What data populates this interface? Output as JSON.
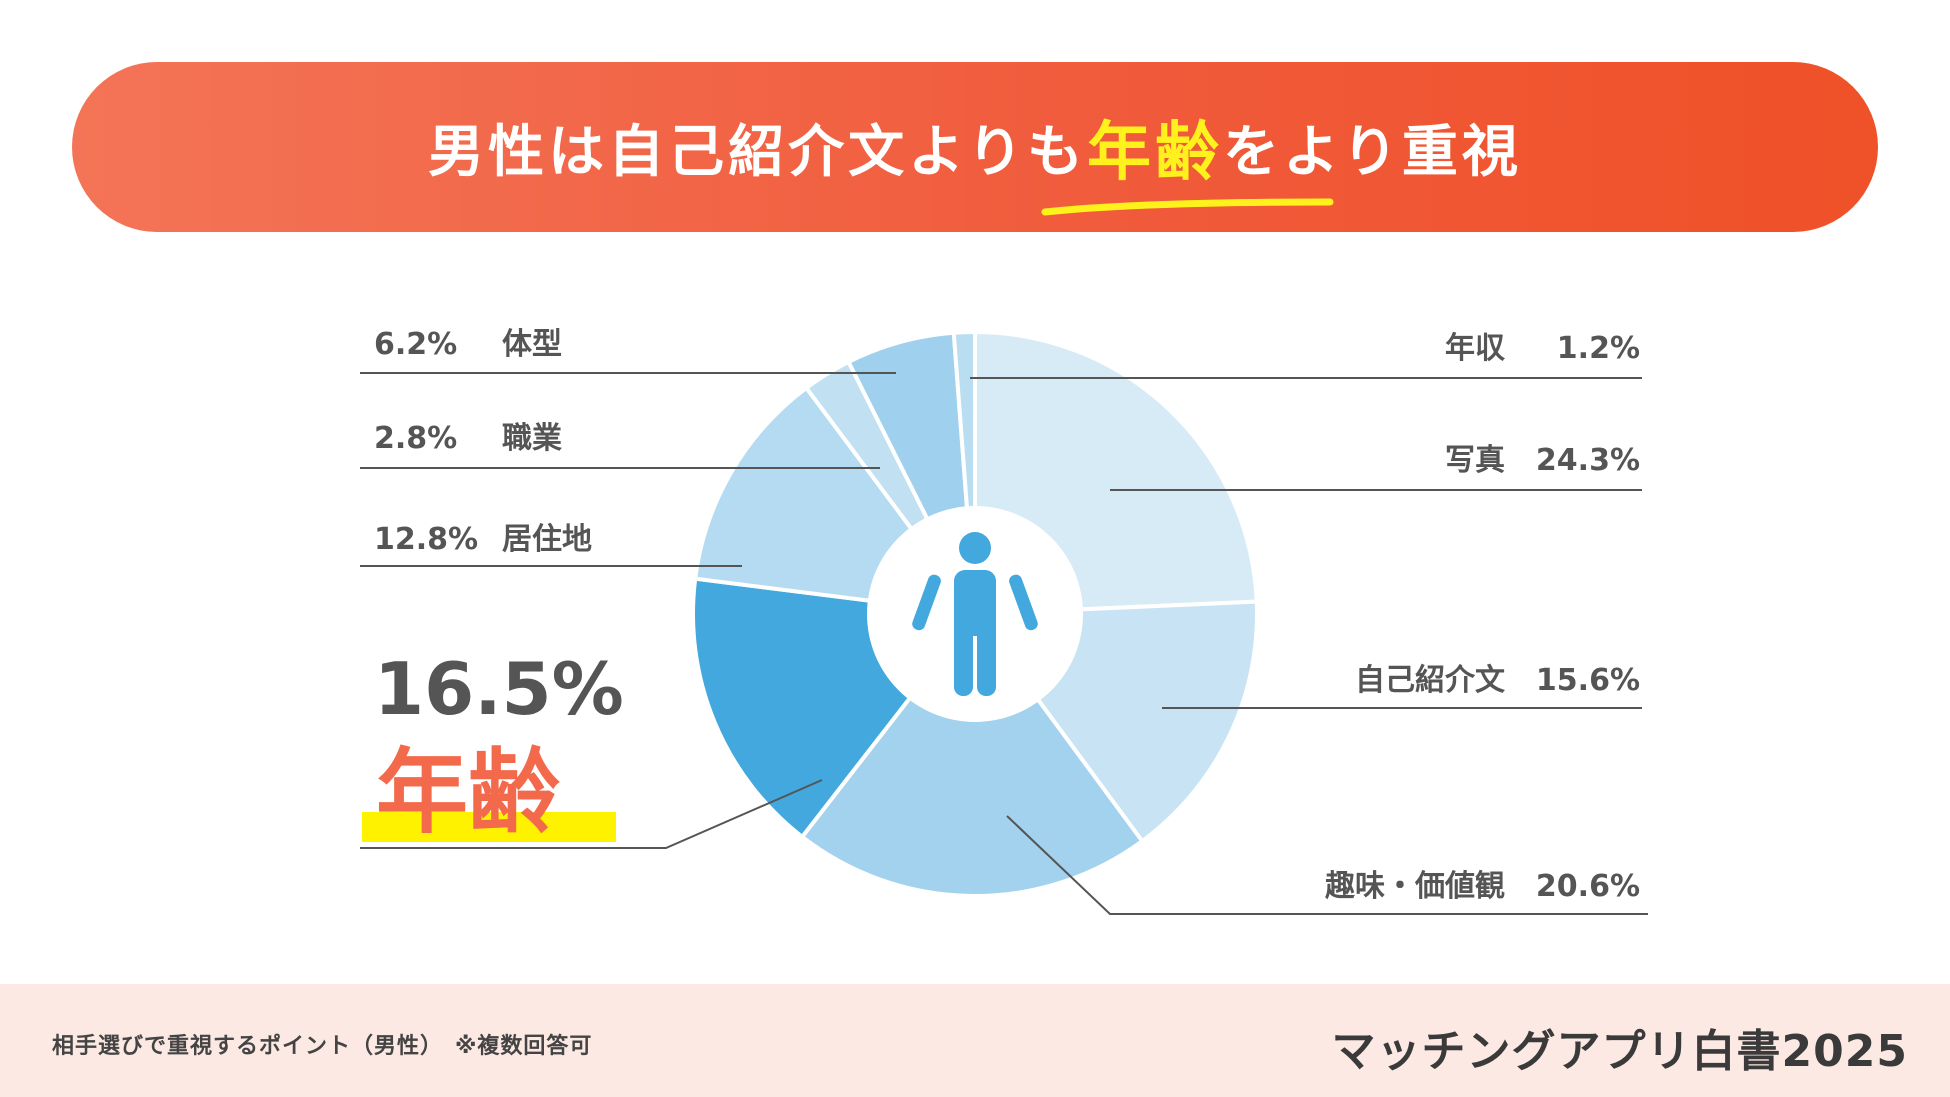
{
  "banner": {
    "title_before": "男性は自己紹介文よりも",
    "title_highlight": "年齢",
    "title_after": "をより重視"
  },
  "chart_data": {
    "type": "pie",
    "slices": [
      {
        "label": "写真",
        "value": 24.3,
        "color": "#d7ebf7"
      },
      {
        "label": "自己紹介文",
        "value": 15.6,
        "color": "#c7e3f4"
      },
      {
        "label": "趣味・価値観",
        "value": 20.6,
        "color": "#a3d2ee"
      },
      {
        "label": "年齢",
        "value": 16.5,
        "color": "#42a8dd"
      },
      {
        "label": "居住地",
        "value": 12.8,
        "color": "#b4dbf1"
      },
      {
        "label": "職業",
        "value": 2.8,
        "color": "#c1e1f3"
      },
      {
        "label": "体型",
        "value": 6.2,
        "color": "#9fd0ed"
      },
      {
        "label": "年収",
        "value": 1.2,
        "color": "#b9def2"
      }
    ],
    "labels": [
      {
        "pct": "1.2%",
        "name": "年収"
      },
      {
        "pct": "24.3%",
        "name": "写真"
      },
      {
        "pct": "15.6%",
        "name": "自己紹介文"
      },
      {
        "pct": "20.6%",
        "name": "趣味・価値観"
      },
      {
        "pct": "6.2%",
        "name": "体型"
      },
      {
        "pct": "2.8%",
        "name": "職業"
      },
      {
        "pct": "12.8%",
        "name": "居住地"
      },
      {
        "pct": "16.5%",
        "name": "年齢"
      }
    ],
    "center_icon": "person-icon",
    "highlight_color": "#f26a4b",
    "highlight_bar_color": "#fff200"
  },
  "footer": {
    "note": "相手選びで重視するポイント（男性）　※複数回答可",
    "brand": "マッチングアプリ白書2025"
  }
}
